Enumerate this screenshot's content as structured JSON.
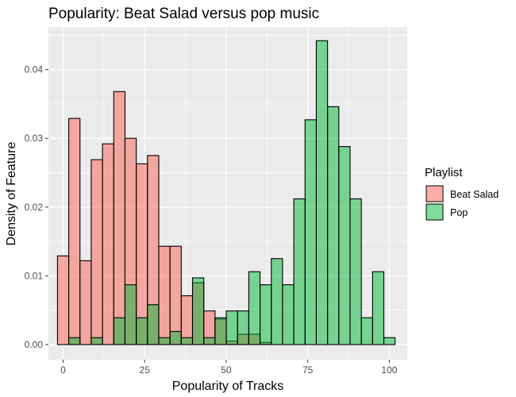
{
  "chart_data": {
    "type": "histogram",
    "title": "Popularity: Beat Salad versus pop music",
    "xlabel": "Popularity of Tracks",
    "ylabel": "Density of Feature",
    "xlim": [
      -4.5,
      105.5
    ],
    "ylim": [
      -0.0022,
      0.0462
    ],
    "x_ticks": [
      0,
      25,
      50,
      75,
      100
    ],
    "x_tick_labels": [
      "0",
      "25",
      "50",
      "75",
      "100"
    ],
    "y_ticks": [
      0,
      0.01,
      0.02,
      0.03,
      0.04
    ],
    "y_tick_labels": [
      "0.00",
      "0.01",
      "0.02",
      "0.03",
      "0.04"
    ],
    "grid": true,
    "legend": {
      "title": "Playlist",
      "position": "right",
      "entries": [
        "Beat Salad",
        "Pop"
      ]
    },
    "bin_width": 3.45,
    "bin_start": -1.725,
    "series": [
      {
        "name": "Beat Salad",
        "color": "#F8766D",
        "values": [
          0.0129,
          0.0329,
          0.0122,
          0.0269,
          0.0292,
          0.0368,
          0.03,
          0.0263,
          0.0275,
          0.0143,
          0.0143,
          0.0071,
          0.009,
          0.0049,
          0.0037,
          0.0005,
          0.0015,
          0.0015,
          0.0003,
          0,
          0,
          0,
          0,
          0,
          0,
          0,
          0,
          0,
          0,
          0,
          0
        ]
      },
      {
        "name": "Pop",
        "color": "#00BA38",
        "values": [
          0,
          0.001,
          0,
          0.001,
          0,
          0.0039,
          0.0087,
          0.0039,
          0.0058,
          0.001,
          0.0019,
          0.001,
          0.0097,
          0.001,
          0.0039,
          0.0049,
          0.0049,
          0.0106,
          0.0087,
          0.0125,
          0.0087,
          0.0212,
          0.0327,
          0.0442,
          0.0346,
          0.0288,
          0.0212,
          0.0039,
          0.0106,
          0.001,
          0
        ]
      }
    ]
  }
}
